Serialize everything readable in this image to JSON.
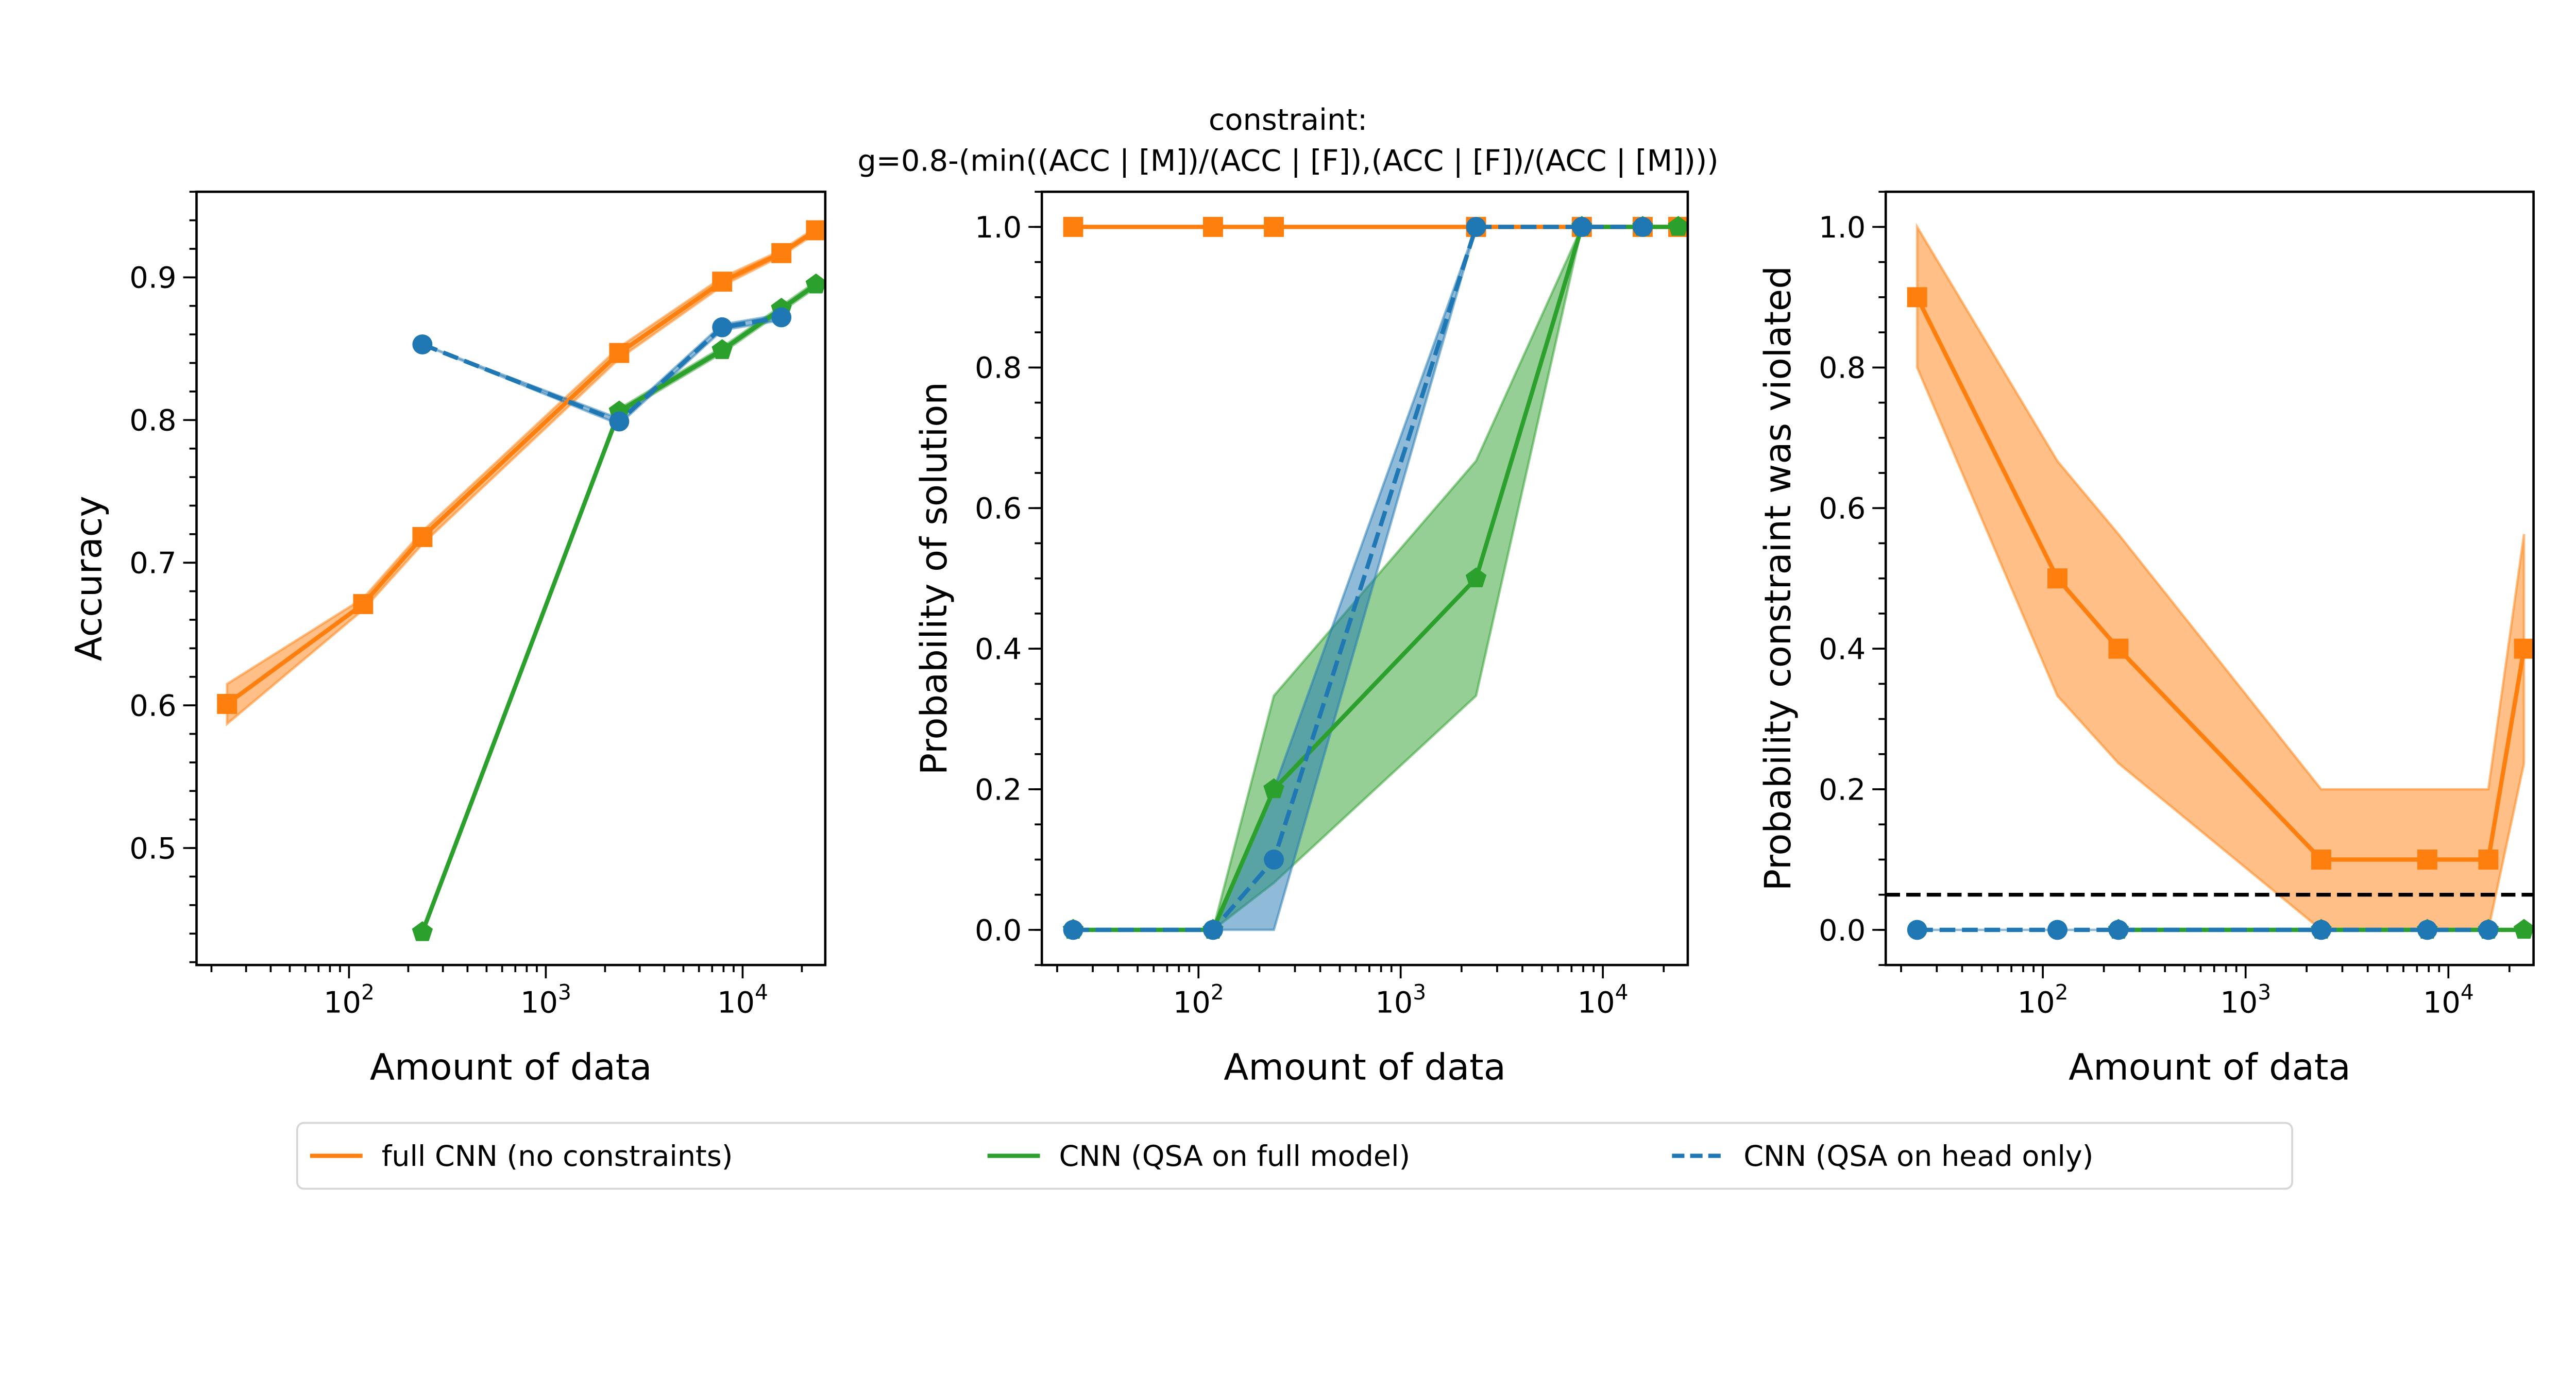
{
  "colors": {
    "orange": "#ff7f0e",
    "green": "#2ca02c",
    "blue": "#1f77b4",
    "reference_line": "#000000"
  },
  "chart_data": {
    "title_line1": "constraint:",
    "title_line2": "g=0.8-(min((ACC | [M])/(ACC | [F]),(ACC | [F])/(ACC | [M])))",
    "legend": {
      "placement": "bottom-center",
      "entries": [
        {
          "name": "full CNN (no constraints)",
          "color": "#ff7f0e",
          "style": "solid"
        },
        {
          "name": "CNN (QSA on full model)",
          "color": "#2ca02c",
          "style": "solid"
        },
        {
          "name": "CNN (QSA on head only)",
          "color": "#1f77b4",
          "style": "dashed"
        }
      ]
    },
    "panels": [
      {
        "type": "line",
        "xlabel": "Amount of data",
        "ylabel": "Accuracy",
        "xscale": "log",
        "xlim": [
          16.8,
          26300
        ],
        "ylim": [
          0.418,
          0.96
        ],
        "xticks": [
          {
            "base": "10",
            "exp": "2",
            "value": 100
          },
          {
            "base": "10",
            "exp": "3",
            "value": 1000
          },
          {
            "base": "10",
            "exp": "4",
            "value": 10000
          }
        ],
        "yticks": [
          {
            "label": "0.5",
            "value": 0.5
          },
          {
            "label": "0.6",
            "value": 0.6
          },
          {
            "label": "0.7",
            "value": 0.7
          },
          {
            "label": "0.8",
            "value": 0.8
          },
          {
            "label": "0.9",
            "value": 0.9
          }
        ],
        "yminor_step": 0.02,
        "series": [
          {
            "ref": "orange",
            "marker": "square",
            "dash": false,
            "x": [
              24,
              118,
              236,
              2360,
              7870,
              15740,
              23600
            ],
            "y": [
              0.601,
              0.671,
              0.718,
              0.847,
              0.897,
              0.917,
              0.933
            ],
            "lower": [
              0.587,
              0.667,
              0.713,
              0.843,
              0.894,
              0.915,
              0.931
            ],
            "upper": [
              0.615,
              0.675,
              0.722,
              0.851,
              0.9,
              0.919,
              0.935
            ]
          },
          {
            "ref": "green",
            "marker": "pentagon",
            "dash": false,
            "x": [
              236,
              2360,
              7870,
              15740,
              23600
            ],
            "y": [
              0.441,
              0.806,
              0.849,
              0.878,
              0.895
            ],
            "lower": [
              0.441,
              0.804,
              0.847,
              0.876,
              0.893
            ],
            "upper": [
              0.441,
              0.808,
              0.851,
              0.88,
              0.897
            ]
          },
          {
            "ref": "blue",
            "marker": "circle",
            "dash": true,
            "x": [
              236,
              2360,
              7870,
              15740
            ],
            "y": [
              0.853,
              0.799,
              0.865,
              0.872
            ],
            "lower": [
              0.853,
              0.797,
              0.863,
              0.87
            ],
            "upper": [
              0.853,
              0.801,
              0.867,
              0.874
            ]
          }
        ]
      },
      {
        "type": "line",
        "xlabel": "Amount of data",
        "ylabel": "Probability of solution",
        "xscale": "log",
        "xlim": [
          16.8,
          26300
        ],
        "ylim": [
          -0.05,
          1.05
        ],
        "xticks": [
          {
            "base": "10",
            "exp": "2",
            "value": 100
          },
          {
            "base": "10",
            "exp": "3",
            "value": 1000
          },
          {
            "base": "10",
            "exp": "4",
            "value": 10000
          }
        ],
        "yticks": [
          {
            "label": "0.0",
            "value": 0
          },
          {
            "label": "0.2",
            "value": 0.2
          },
          {
            "label": "0.4",
            "value": 0.4
          },
          {
            "label": "0.6",
            "value": 0.6
          },
          {
            "label": "0.8",
            "value": 0.8
          },
          {
            "label": "1.0",
            "value": 1.0
          }
        ],
        "yminor_step": 0.05,
        "series": [
          {
            "ref": "orange",
            "marker": "square",
            "dash": false,
            "x": [
              24,
              118,
              236,
              2360,
              7870,
              15740,
              23600
            ],
            "y": [
              1,
              1,
              1,
              1,
              1,
              1,
              1
            ],
            "lower": [
              1,
              1,
              1,
              1,
              1,
              1,
              1
            ],
            "upper": [
              1,
              1,
              1,
              1,
              1,
              1,
              1
            ]
          },
          {
            "ref": "green",
            "marker": "pentagon",
            "dash": false,
            "x": [
              24,
              118,
              236,
              2360,
              7870,
              15740,
              23600
            ],
            "y": [
              0,
              0,
              0.2,
              0.5,
              1,
              1,
              1
            ],
            "lower": [
              0,
              0,
              0.067,
              0.333,
              1,
              1,
              1
            ],
            "upper": [
              0,
              0,
              0.333,
              0.667,
              1,
              1,
              1
            ]
          },
          {
            "ref": "blue",
            "marker": "circle",
            "dash": true,
            "x": [
              24,
              118,
              236,
              2360,
              7870,
              15740
            ],
            "y": [
              0,
              0,
              0.1,
              1,
              1,
              1
            ],
            "lower": [
              0,
              0,
              0,
              1,
              1,
              1
            ],
            "upper": [
              0,
              0,
              0.2,
              1,
              1,
              1
            ]
          }
        ]
      },
      {
        "type": "line",
        "xlabel": "Amount of data",
        "ylabel": "Probability constraint was violated",
        "xscale": "log",
        "xlim": [
          16.8,
          26300
        ],
        "ylim": [
          -0.05,
          1.05
        ],
        "xticks": [
          {
            "base": "10",
            "exp": "2",
            "value": 100
          },
          {
            "base": "10",
            "exp": "3",
            "value": 1000
          },
          {
            "base": "10",
            "exp": "4",
            "value": 10000
          }
        ],
        "yticks": [
          {
            "label": "0.0",
            "value": 0
          },
          {
            "label": "0.2",
            "value": 0.2
          },
          {
            "label": "0.4",
            "value": 0.4
          },
          {
            "label": "0.6",
            "value": 0.6
          },
          {
            "label": "0.8",
            "value": 0.8
          },
          {
            "label": "1.0",
            "value": 1.0
          }
        ],
        "yminor_step": 0.05,
        "hline": {
          "y": 0.05,
          "style": "dashed",
          "color": "#000000"
        },
        "series": [
          {
            "ref": "orange",
            "marker": "square",
            "dash": false,
            "x": [
              24,
              118,
              236,
              2360,
              7870,
              15740,
              23600
            ],
            "y": [
              0.9,
              0.5,
              0.4,
              0.1,
              0.1,
              0.1,
              0.4
            ],
            "lower": [
              0.8,
              0.333,
              0.237,
              0,
              0,
              0,
              0.237
            ],
            "upper": [
              1.0,
              0.667,
              0.563,
              0.2,
              0.2,
              0.2,
              0.563
            ]
          },
          {
            "ref": "green",
            "marker": "pentagon",
            "dash": false,
            "x": [
              236,
              2360,
              7870,
              15740,
              23600
            ],
            "y": [
              0,
              0,
              0,
              0,
              0
            ],
            "lower": [
              0,
              0,
              0,
              0,
              0
            ],
            "upper": [
              0,
              0,
              0,
              0,
              0
            ]
          },
          {
            "ref": "blue",
            "marker": "circle",
            "dash": true,
            "x": [
              24,
              118,
              236,
              2360,
              7870,
              15740
            ],
            "y": [
              0,
              0,
              0,
              0,
              0,
              0
            ],
            "lower": [
              0,
              0,
              0,
              0,
              0,
              0
            ],
            "upper": [
              0,
              0,
              0,
              0,
              0,
              0
            ]
          }
        ]
      }
    ]
  }
}
